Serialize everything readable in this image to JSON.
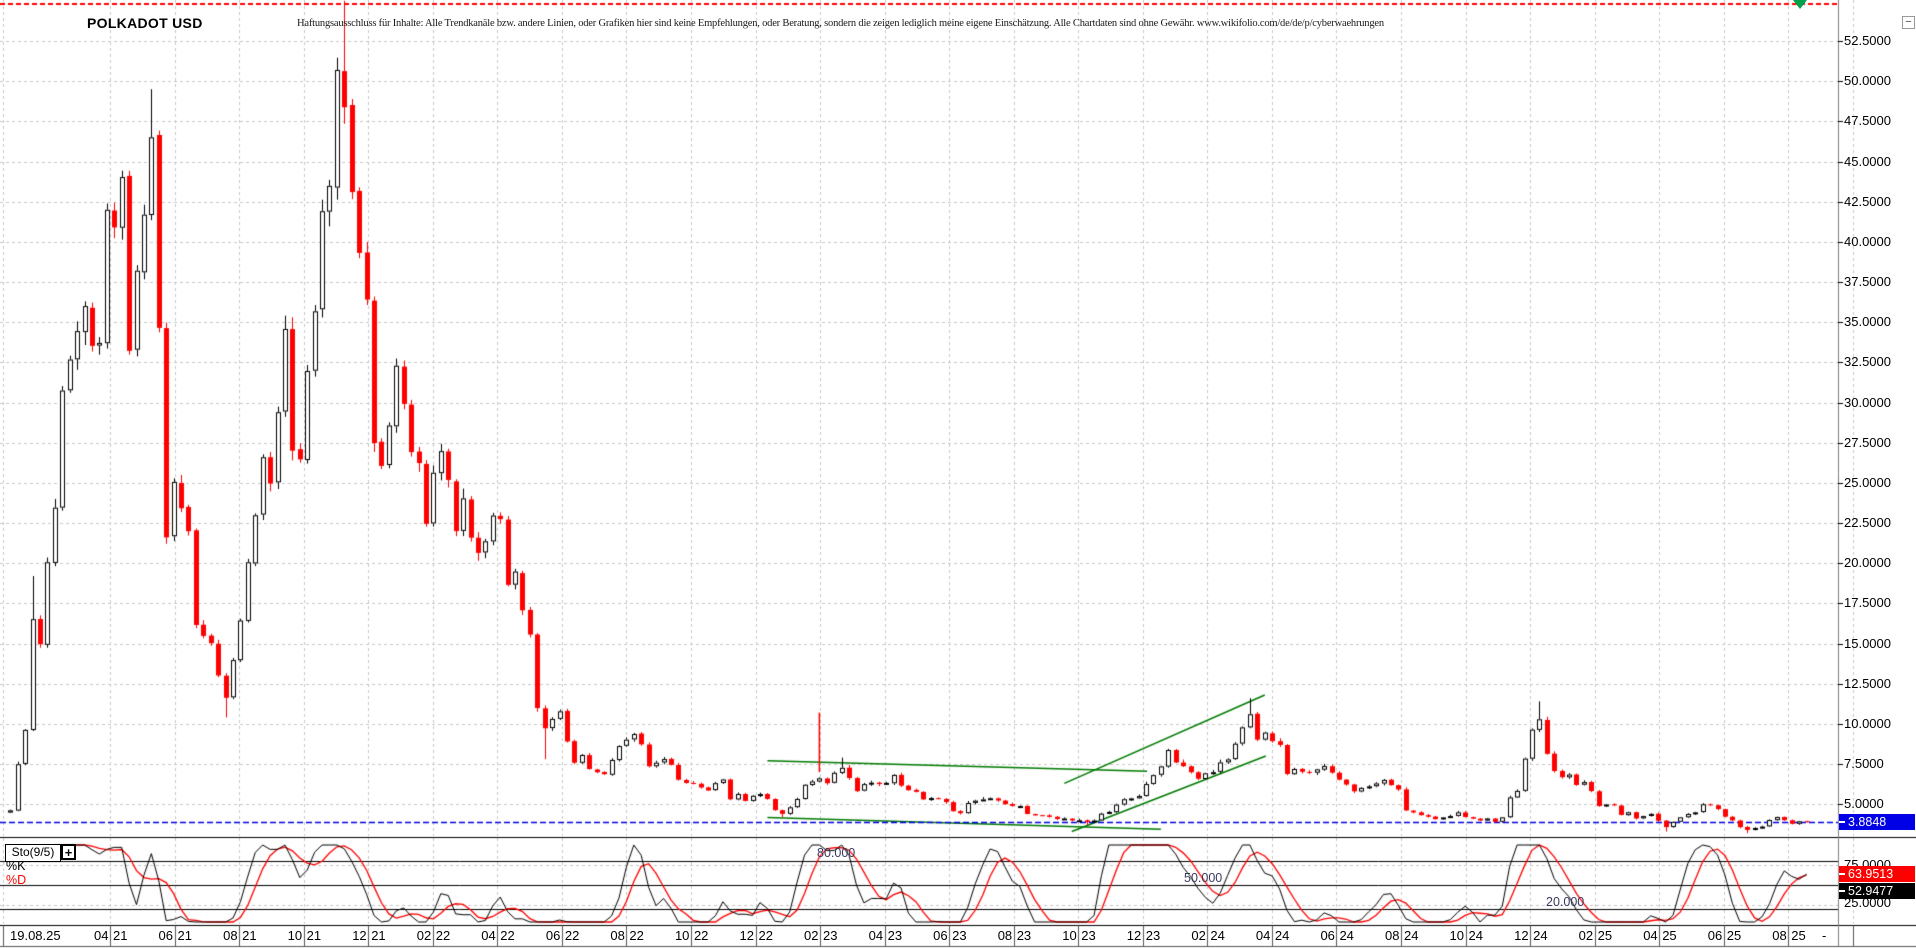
{
  "header": {
    "title": "POLKADOT USD",
    "disclaimer": "Haftungsausschluss für Inhalte: Alle Trendkanäle bzw. andere Linien, oder Grafiken hier sind keine Empfehlungen, oder Beratung, sondern die zeigen lediglich meine eigene Einschätzung. Alle Chartdaten sind ohne Gewähr. www.wikifolio.com/de/de/p/cyberwaehrungen"
  },
  "controls": {
    "collapse_label": "−"
  },
  "price_axis": {
    "labels": [
      "52.5000",
      "50.0000",
      "47.5000",
      "45.0000",
      "42.5000",
      "40.0000",
      "37.5000",
      "35.0000",
      "32.5000",
      "30.0000",
      "27.5000",
      "25.0000",
      "22.5000",
      "20.0000",
      "17.5000",
      "15.0000",
      "12.5000",
      "10.0000",
      "7.5000",
      "5.0000"
    ],
    "top_value": 52.5,
    "step": 2.5,
    "current_price_label": "3.8848",
    "current_price_box_color": "#0000e6"
  },
  "date_axis": {
    "labels": [
      {
        "text": "19.08.25"
      },
      {
        "m": "04",
        "y": "21"
      },
      {
        "m": "06",
        "y": "21"
      },
      {
        "m": "08",
        "y": "21"
      },
      {
        "m": "10",
        "y": "21"
      },
      {
        "m": "12",
        "y": "21"
      },
      {
        "m": "02",
        "y": "22"
      },
      {
        "m": "04",
        "y": "22"
      },
      {
        "m": "06",
        "y": "22"
      },
      {
        "m": "08",
        "y": "22"
      },
      {
        "m": "10",
        "y": "22"
      },
      {
        "m": "12",
        "y": "22"
      },
      {
        "m": "02",
        "y": "23"
      },
      {
        "m": "04",
        "y": "23"
      },
      {
        "m": "06",
        "y": "23"
      },
      {
        "m": "08",
        "y": "23"
      },
      {
        "m": "10",
        "y": "23"
      },
      {
        "m": "12",
        "y": "23"
      },
      {
        "m": "02",
        "y": "24"
      },
      {
        "m": "04",
        "y": "24"
      },
      {
        "m": "06",
        "y": "24"
      },
      {
        "m": "08",
        "y": "24"
      },
      {
        "m": "10",
        "y": "24"
      },
      {
        "m": "12",
        "y": "24"
      },
      {
        "m": "02",
        "y": "25"
      },
      {
        "m": "04",
        "y": "25"
      },
      {
        "m": "06",
        "y": "25"
      },
      {
        "m": "08",
        "y": "25"
      },
      {
        "text": "-"
      }
    ]
  },
  "indicator": {
    "name": "Sto(9/5)",
    "add_button": "+",
    "k_label": "%K",
    "d_label": "%D",
    "k_color": "#000000",
    "d_color": "#ff0000",
    "levels": [
      "80.000",
      "50.000",
      "20.000"
    ],
    "level_values": [
      80,
      50,
      20
    ],
    "axis_labels": [
      "75.0000",
      "25.0000"
    ],
    "axis_label_values": [
      75,
      25
    ],
    "d_value": "63.9513",
    "k_value": "52.9477",
    "d_box_color": "#ff0000",
    "k_box_color": "#000000"
  },
  "chart_data": {
    "type": "candlestick",
    "symbol": "POLKADOT USD",
    "timeframe": "weekly",
    "x_range": [
      "2020-12-28",
      "2025-08-25"
    ],
    "ylim": [
      2.95,
      55.05
    ],
    "y_grid_step": 2.5,
    "grid": true,
    "current_price": 3.8848,
    "ath_dashed_line": 54.8,
    "up_candle": {
      "fill": "#ffffff",
      "border": "#000000"
    },
    "down_candle": {
      "fill": "#ff0000",
      "border": "#ee0000"
    },
    "price_keypoints": [
      [
        "2020-12-28",
        4.6
      ],
      [
        "2021-01-04",
        7.5
      ],
      [
        "2021-01-11",
        9.6
      ],
      [
        "2021-01-18",
        16.5
      ],
      [
        "2021-01-25",
        15.0
      ],
      [
        "2021-02-01",
        20.0
      ],
      [
        "2021-02-08",
        23.5
      ],
      [
        "2021-02-15",
        31.0
      ],
      [
        "2021-02-22",
        33.0
      ],
      [
        "2021-03-01",
        34.5
      ],
      [
        "2021-03-08",
        36.0
      ],
      [
        "2021-03-15",
        33.5
      ],
      [
        "2021-03-22",
        34.0
      ],
      [
        "2021-03-29",
        42.0
      ],
      [
        "2021-04-05",
        41.0
      ],
      [
        "2021-04-12",
        44.0
      ],
      [
        "2021-04-19",
        33.5
      ],
      [
        "2021-04-26",
        38.0
      ],
      [
        "2021-05-03",
        41.5
      ],
      [
        "2021-05-10",
        46.5
      ],
      [
        "2021-05-17",
        35.0
      ],
      [
        "2021-05-24",
        21.5
      ],
      [
        "2021-05-31",
        25.0
      ],
      [
        "2021-06-07",
        23.5
      ],
      [
        "2021-06-14",
        22.0
      ],
      [
        "2021-06-21",
        16.0
      ],
      [
        "2021-06-28",
        15.5
      ],
      [
        "2021-07-05",
        15.0
      ],
      [
        "2021-07-12",
        13.0
      ],
      [
        "2021-07-19",
        11.5
      ],
      [
        "2021-07-26",
        14.0
      ],
      [
        "2021-08-02",
        16.5
      ],
      [
        "2021-08-09",
        20.0
      ],
      [
        "2021-08-16",
        23.0
      ],
      [
        "2021-08-23",
        26.5
      ],
      [
        "2021-08-30",
        25.0
      ],
      [
        "2021-09-06",
        29.5
      ],
      [
        "2021-09-13",
        34.5
      ],
      [
        "2021-09-20",
        27.0
      ],
      [
        "2021-09-27",
        26.5
      ],
      [
        "2021-10-04",
        32.0
      ],
      [
        "2021-10-11",
        35.5
      ],
      [
        "2021-10-18",
        42.0
      ],
      [
        "2021-10-25",
        43.5
      ],
      [
        "2021-11-01",
        51.0
      ],
      [
        "2021-11-08",
        48.5
      ],
      [
        "2021-11-15",
        43.0
      ],
      [
        "2021-11-22",
        39.5
      ],
      [
        "2021-11-29",
        36.5
      ],
      [
        "2021-12-06",
        27.5
      ],
      [
        "2021-12-13",
        26.0
      ],
      [
        "2021-12-20",
        28.5
      ],
      [
        "2021-12-27",
        32.5
      ],
      [
        "2022-01-03",
        30.0
      ],
      [
        "2022-01-10",
        27.0
      ],
      [
        "2022-01-17",
        26.5
      ],
      [
        "2022-01-24",
        22.5
      ],
      [
        "2022-01-31",
        25.5
      ],
      [
        "2022-02-07",
        27.0
      ],
      [
        "2022-02-14",
        25.0
      ],
      [
        "2022-02-21",
        22.0
      ],
      [
        "2022-02-28",
        24.0
      ],
      [
        "2022-03-07",
        21.5
      ],
      [
        "2022-03-14",
        20.5
      ],
      [
        "2022-03-21",
        21.5
      ],
      [
        "2022-03-28",
        23.0
      ],
      [
        "2022-04-04",
        22.5
      ],
      [
        "2022-04-11",
        18.5
      ],
      [
        "2022-04-18",
        19.5
      ],
      [
        "2022-04-25",
        17.0
      ],
      [
        "2022-05-02",
        15.5
      ],
      [
        "2022-05-09",
        11.0
      ],
      [
        "2022-05-16",
        9.8
      ],
      [
        "2022-05-23",
        10.2
      ],
      [
        "2022-05-30",
        10.8
      ],
      [
        "2022-06-06",
        9.0
      ],
      [
        "2022-06-13",
        7.6
      ],
      [
        "2022-06-20",
        8.0
      ],
      [
        "2022-06-27",
        7.2
      ],
      [
        "2022-07-04",
        7.0
      ],
      [
        "2022-07-11",
        6.9
      ],
      [
        "2022-07-18",
        7.8
      ],
      [
        "2022-07-25",
        8.6
      ],
      [
        "2022-08-01",
        9.1
      ],
      [
        "2022-08-08",
        9.4
      ],
      [
        "2022-08-15",
        8.7
      ],
      [
        "2022-08-22",
        7.4
      ],
      [
        "2022-08-29",
        7.6
      ],
      [
        "2022-09-05",
        7.8
      ],
      [
        "2022-09-12",
        7.4
      ],
      [
        "2022-09-19",
        6.5
      ],
      [
        "2022-09-26",
        6.4
      ],
      [
        "2022-10-03",
        6.3
      ],
      [
        "2022-10-10",
        6.0
      ],
      [
        "2022-10-17",
        5.9
      ],
      [
        "2022-10-24",
        6.3
      ],
      [
        "2022-10-31",
        6.5
      ],
      [
        "2022-11-07",
        5.3
      ],
      [
        "2022-11-14",
        5.6
      ],
      [
        "2022-11-21",
        5.2
      ],
      [
        "2022-11-28",
        5.5
      ],
      [
        "2022-12-05",
        5.6
      ],
      [
        "2022-12-12",
        5.3
      ],
      [
        "2022-12-19",
        4.6
      ],
      [
        "2022-12-26",
        4.4
      ],
      [
        "2023-01-02",
        4.8
      ],
      [
        "2023-01-09",
        5.3
      ],
      [
        "2023-01-16",
        6.2
      ],
      [
        "2023-01-23",
        6.4
      ],
      [
        "2023-01-30",
        6.6
      ],
      [
        "2023-02-06",
        6.3
      ],
      [
        "2023-02-13",
        6.9
      ],
      [
        "2023-02-20",
        7.3
      ],
      [
        "2023-02-27",
        6.6
      ],
      [
        "2023-03-06",
        5.8
      ],
      [
        "2023-03-13",
        6.3
      ],
      [
        "2023-03-20",
        6.4
      ],
      [
        "2023-03-27",
        6.2
      ],
      [
        "2023-04-03",
        6.4
      ],
      [
        "2023-04-10",
        6.8
      ],
      [
        "2023-04-17",
        6.1
      ],
      [
        "2023-04-24",
        5.9
      ],
      [
        "2023-05-01",
        5.8
      ],
      [
        "2023-05-08",
        5.3
      ],
      [
        "2023-05-15",
        5.4
      ],
      [
        "2023-05-22",
        5.3
      ],
      [
        "2023-05-29",
        5.2
      ],
      [
        "2023-06-05",
        4.6
      ],
      [
        "2023-06-12",
        4.4
      ],
      [
        "2023-06-19",
        5.1
      ],
      [
        "2023-06-26",
        5.2
      ],
      [
        "2023-07-03",
        5.3
      ],
      [
        "2023-07-10",
        5.4
      ],
      [
        "2023-07-17",
        5.2
      ],
      [
        "2023-07-24",
        5.0
      ],
      [
        "2023-07-31",
        4.9
      ],
      [
        "2023-08-07",
        4.9
      ],
      [
        "2023-08-14",
        4.4
      ],
      [
        "2023-08-21",
        4.3
      ],
      [
        "2023-08-28",
        4.3
      ],
      [
        "2023-09-04",
        4.2
      ],
      [
        "2023-09-11",
        4.1
      ],
      [
        "2023-09-18",
        4.1
      ],
      [
        "2023-09-25",
        4.0
      ],
      [
        "2023-10-02",
        4.0
      ],
      [
        "2023-10-09",
        3.9
      ],
      [
        "2023-10-16",
        4.0
      ],
      [
        "2023-10-23",
        4.4
      ],
      [
        "2023-10-30",
        4.5
      ],
      [
        "2023-11-06",
        5.0
      ],
      [
        "2023-11-13",
        5.3
      ],
      [
        "2023-11-20",
        5.4
      ],
      [
        "2023-11-27",
        5.5
      ],
      [
        "2023-12-04",
        6.3
      ],
      [
        "2023-12-11",
        6.8
      ],
      [
        "2023-12-18",
        7.3
      ],
      [
        "2023-12-25",
        8.4
      ],
      [
        "2024-01-01",
        7.6
      ],
      [
        "2024-01-08",
        7.4
      ],
      [
        "2024-01-15",
        7.0
      ],
      [
        "2024-01-22",
        6.6
      ],
      [
        "2024-01-29",
        6.9
      ],
      [
        "2024-02-05",
        7.0
      ],
      [
        "2024-02-12",
        7.6
      ],
      [
        "2024-02-19",
        7.8
      ],
      [
        "2024-02-26",
        8.7
      ],
      [
        "2024-03-04",
        9.8
      ],
      [
        "2024-03-11",
        10.6
      ],
      [
        "2024-03-18",
        9.0
      ],
      [
        "2024-03-25",
        9.4
      ],
      [
        "2024-04-01",
        8.8
      ],
      [
        "2024-04-08",
        8.6
      ],
      [
        "2024-04-15",
        6.9
      ],
      [
        "2024-04-22",
        7.2
      ],
      [
        "2024-04-29",
        7.0
      ],
      [
        "2024-05-06",
        6.9
      ],
      [
        "2024-05-13",
        7.2
      ],
      [
        "2024-05-20",
        7.4
      ],
      [
        "2024-05-27",
        7.0
      ],
      [
        "2024-06-03",
        6.5
      ],
      [
        "2024-06-10",
        6.2
      ],
      [
        "2024-06-17",
        5.8
      ],
      [
        "2024-06-24",
        6.0
      ],
      [
        "2024-07-01",
        6.1
      ],
      [
        "2024-07-08",
        6.3
      ],
      [
        "2024-07-15",
        6.5
      ],
      [
        "2024-07-22",
        6.2
      ],
      [
        "2024-07-29",
        5.9
      ],
      [
        "2024-08-05",
        4.6
      ],
      [
        "2024-08-12",
        4.5
      ],
      [
        "2024-08-19",
        4.3
      ],
      [
        "2024-08-26",
        4.2
      ],
      [
        "2024-09-02",
        4.1
      ],
      [
        "2024-09-09",
        4.2
      ],
      [
        "2024-09-16",
        4.3
      ],
      [
        "2024-09-23",
        4.5
      ],
      [
        "2024-09-30",
        4.2
      ],
      [
        "2024-10-07",
        4.1
      ],
      [
        "2024-10-14",
        4.0
      ],
      [
        "2024-10-21",
        4.1
      ],
      [
        "2024-10-28",
        3.9
      ],
      [
        "2024-11-04",
        4.2
      ],
      [
        "2024-11-11",
        5.4
      ],
      [
        "2024-11-18",
        5.8
      ],
      [
        "2024-11-25",
        7.8
      ],
      [
        "2024-12-02",
        9.6
      ],
      [
        "2024-12-09",
        10.2
      ],
      [
        "2024-12-16",
        8.2
      ],
      [
        "2024-12-23",
        7.0
      ],
      [
        "2024-12-30",
        6.7
      ],
      [
        "2025-01-06",
        6.8
      ],
      [
        "2025-01-13",
        6.2
      ],
      [
        "2025-01-20",
        6.4
      ],
      [
        "2025-01-27",
        5.8
      ],
      [
        "2025-02-03",
        4.9
      ],
      [
        "2025-02-10",
        5.0
      ],
      [
        "2025-02-17",
        4.9
      ],
      [
        "2025-02-24",
        4.3
      ],
      [
        "2025-03-03",
        4.5
      ],
      [
        "2025-03-10",
        4.1
      ],
      [
        "2025-03-17",
        4.3
      ],
      [
        "2025-03-24",
        4.4
      ],
      [
        "2025-03-31",
        4.0
      ],
      [
        "2025-04-07",
        3.6
      ],
      [
        "2025-04-14",
        3.9
      ],
      [
        "2025-04-21",
        4.2
      ],
      [
        "2025-04-28",
        4.4
      ],
      [
        "2025-05-05",
        4.5
      ],
      [
        "2025-05-12",
        5.0
      ],
      [
        "2025-05-19",
        4.9
      ],
      [
        "2025-05-26",
        4.7
      ],
      [
        "2025-06-02",
        4.2
      ],
      [
        "2025-06-09",
        4.0
      ],
      [
        "2025-06-16",
        3.6
      ],
      [
        "2025-06-23",
        3.4
      ],
      [
        "2025-06-30",
        3.5
      ],
      [
        "2025-07-07",
        3.6
      ],
      [
        "2025-07-14",
        4.0
      ],
      [
        "2025-07-21",
        4.2
      ],
      [
        "2025-07-28",
        4.0
      ],
      [
        "2025-08-04",
        3.8
      ],
      [
        "2025-08-11",
        3.9
      ],
      [
        "2025-08-18",
        3.8848
      ]
    ],
    "wick_highs": {
      "2021-01-18": 19.2,
      "2021-05-10": 49.5,
      "2021-11-08": 55.0,
      "2024-03-11": 11.6,
      "2024-12-09": 11.4,
      "2023-02-20": 7.9
    },
    "wick_lows": {
      "2021-07-19": 10.4,
      "2022-05-16": 7.8,
      "2022-12-26": 4.2,
      "2023-10-09": 3.7,
      "2025-04-07": 3.3,
      "2025-06-23": 3.2
    },
    "trendlines": [
      {
        "x1": "2022-12-12",
        "p1": 7.7,
        "x2": "2023-12-05",
        "p2": 7.05,
        "color": "#007a00"
      },
      {
        "x1": "2022-12-12",
        "p1": 4.17,
        "x2": "2023-12-18",
        "p2": 3.45,
        "color": "#007a00"
      },
      {
        "x1": "2023-09-18",
        "p1": 6.3,
        "x2": "2024-03-25",
        "p2": 11.8,
        "color": "#007a00"
      },
      {
        "x1": "2023-09-25",
        "p1": 3.3,
        "x2": "2024-03-26",
        "p2": 8.0,
        "color": "#007a00"
      }
    ],
    "red_vline": {
      "date": "2023-01-30",
      "price_from": 7.0,
      "price_to": 10.7,
      "color": "#ff0000"
    },
    "event_marker": {
      "shape": "triangle-down",
      "color": "#00a14b",
      "date": "2025-08-12"
    },
    "indicator_panel": {
      "type": "line",
      "name": "Sto(9/5)",
      "range": [
        0,
        100
      ],
      "levels": [
        80,
        50,
        20
      ],
      "series": [
        {
          "name": "%K",
          "color": "#000000",
          "last_value": 52.9477
        },
        {
          "name": "%D",
          "color": "#ff0000",
          "last_value": 63.9513
        }
      ],
      "derived_from": "price_keypoints"
    }
  }
}
